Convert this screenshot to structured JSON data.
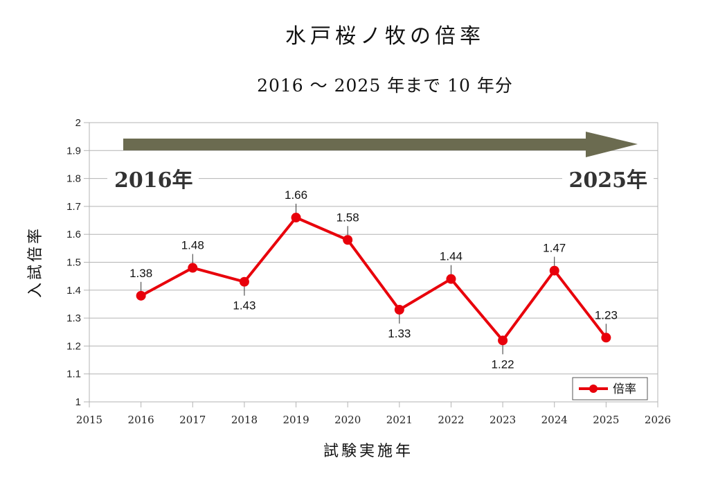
{
  "chart_data": {
    "type": "line",
    "title": "水戸桜ノ牧の倍率",
    "subtitle": "2016 ～ 2025 年まで 10 年分",
    "xlabel": "試験実施年",
    "ylabel": "入試倍率",
    "xlim": [
      2015,
      2026
    ],
    "ylim": [
      1,
      2
    ],
    "x_ticks": [
      "2015",
      "2016",
      "2017",
      "2018",
      "2019",
      "2020",
      "2021",
      "2022",
      "2023",
      "2024",
      "2025",
      "2026"
    ],
    "y_ticks": [
      "1",
      "1.1",
      "1.2",
      "1.3",
      "1.4",
      "1.5",
      "1.6",
      "1.7",
      "1.8",
      "1.9",
      "2"
    ],
    "grid": true,
    "legend_position": "bottom-right",
    "series": [
      {
        "name": "倍率",
        "color": "#e8000b",
        "x": [
          2016,
          2017,
          2018,
          2019,
          2020,
          2021,
          2022,
          2023,
          2024,
          2025
        ],
        "values": [
          1.38,
          1.48,
          1.43,
          1.66,
          1.58,
          1.33,
          1.44,
          1.22,
          1.47,
          1.23
        ],
        "labels": [
          "1.38",
          "1.48",
          "1.43",
          "1.66",
          "1.58",
          "1.33",
          "1.44",
          "1.22",
          "1.47",
          "1.23"
        ],
        "label_placement": [
          "above",
          "above",
          "below",
          "above",
          "above",
          "below",
          "above",
          "below",
          "above",
          "above"
        ]
      }
    ],
    "annotations": {
      "arrow_color": "#6b6b50",
      "start_label": "2016年",
      "end_label": "2025年"
    }
  }
}
